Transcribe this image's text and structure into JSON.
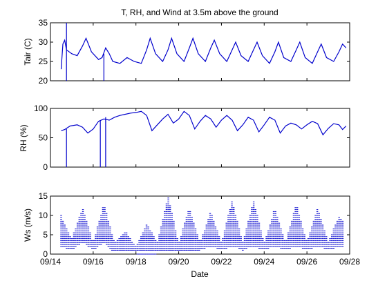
{
  "chart_data": [
    {
      "type": "line",
      "title": "T, RH, and Wind at 3.5m above the ground",
      "ylabel": "Tair (C)",
      "xlabel": "",
      "xlim": [
        "09/14",
        "09/28"
      ],
      "ylim": [
        20,
        35
      ],
      "yticks": [
        20,
        25,
        30,
        35
      ],
      "grid": false,
      "color": "#0000cc",
      "series": [
        {
          "x": [
            "09/14 12:00",
            "09/14 14:00",
            "09/14 16:00",
            "09/14 18:00",
            "09/15 00:00",
            "09/15 06:00",
            "09/15 12:00",
            "09/15 16:00",
            "09/15 22:00",
            "09/16 06:00",
            "09/16 10:00",
            "09/16 14:00",
            "09/16 18:00",
            "09/16 22:00",
            "09/17 06:00",
            "09/17 14:00",
            "09/17 22:00",
            "09/18 06:00",
            "09/18 12:00",
            "09/18 16:00",
            "09/18 22:00",
            "09/19 06:00",
            "09/19 12:00",
            "09/19 16:00",
            "09/19 22:00",
            "09/20 06:00",
            "09/20 12:00",
            "09/20 16:00",
            "09/20 22:00",
            "09/21 06:00",
            "09/21 12:00",
            "09/21 16:00",
            "09/21 22:00",
            "09/22 06:00",
            "09/22 12:00",
            "09/22 16:00",
            "09/22 22:00",
            "09/23 06:00",
            "09/23 12:00",
            "09/23 16:00",
            "09/23 22:00",
            "09/24 06:00",
            "09/24 12:00",
            "09/24 16:00",
            "09/24 22:00",
            "09/25 06:00",
            "09/25 12:00",
            "09/25 16:00",
            "09/25 22:00",
            "09/26 06:00",
            "09/26 12:00",
            "09/26 16:00",
            "09/26 22:00",
            "09/27 06:00",
            "09/27 12:00",
            "09/27 16:00",
            "09/27 20:00"
          ],
          "y": [
            23.0,
            29.5,
            30.5,
            28.0,
            27.0,
            26.5,
            29.0,
            31.0,
            27.5,
            25.5,
            26.0,
            28.5,
            27.0,
            25.0,
            24.5,
            26.0,
            25.0,
            24.5,
            28.0,
            31.0,
            27.0,
            25.0,
            28.0,
            31.0,
            27.0,
            25.0,
            28.5,
            31.0,
            27.0,
            25.0,
            28.5,
            30.5,
            27.0,
            25.0,
            28.0,
            30.0,
            26.5,
            25.0,
            28.0,
            30.0,
            26.5,
            24.5,
            27.5,
            30.0,
            26.0,
            25.0,
            28.0,
            30.0,
            26.0,
            24.5,
            27.5,
            29.5,
            26.0,
            25.0,
            27.5,
            29.5,
            28.5
          ]
        }
      ],
      "spikes": [
        {
          "x": "09/14 18:00",
          "from": 20,
          "to": 35
        },
        {
          "x": "09/16 12:00",
          "from": 20,
          "to": 27
        }
      ]
    },
    {
      "type": "line",
      "title": "",
      "ylabel": "RH (%)",
      "xlabel": "",
      "xlim": [
        "09/14",
        "09/28"
      ],
      "ylim": [
        0,
        100
      ],
      "yticks": [
        0,
        50,
        100
      ],
      "grid": false,
      "color": "#0000cc",
      "series": [
        {
          "x": [
            "09/14 12:00",
            "09/14 16:00",
            "09/14 22:00",
            "09/15 06:00",
            "09/15 12:00",
            "09/15 18:00",
            "09/16 00:00",
            "09/16 06:00",
            "09/16 12:00",
            "09/16 18:00",
            "09/17 00:00",
            "09/17 06:00",
            "09/17 12:00",
            "09/17 18:00",
            "09/18 00:00",
            "09/18 06:00",
            "09/18 12:00",
            "09/18 18:00",
            "09/19 00:00",
            "09/19 06:00",
            "09/19 12:00",
            "09/19 18:00",
            "09/20 00:00",
            "09/20 06:00",
            "09/20 12:00",
            "09/20 18:00",
            "09/21 00:00",
            "09/21 06:00",
            "09/21 12:00",
            "09/21 18:00",
            "09/22 00:00",
            "09/22 06:00",
            "09/22 12:00",
            "09/22 18:00",
            "09/23 00:00",
            "09/23 06:00",
            "09/23 12:00",
            "09/23 18:00",
            "09/24 00:00",
            "09/24 06:00",
            "09/24 12:00",
            "09/24 18:00",
            "09/25 00:00",
            "09/25 06:00",
            "09/25 12:00",
            "09/25 18:00",
            "09/26 00:00",
            "09/26 06:00",
            "09/26 12:00",
            "09/26 18:00",
            "09/27 00:00",
            "09/27 06:00",
            "09/27 12:00",
            "09/27 16:00",
            "09/27 20:00"
          ],
          "y": [
            62,
            64,
            70,
            72,
            68,
            58,
            65,
            78,
            82,
            80,
            85,
            88,
            90,
            92,
            93,
            95,
            88,
            62,
            72,
            82,
            90,
            75,
            82,
            95,
            88,
            65,
            78,
            88,
            82,
            68,
            80,
            88,
            80,
            62,
            72,
            85,
            80,
            60,
            72,
            85,
            80,
            58,
            70,
            75,
            72,
            65,
            72,
            78,
            74,
            55,
            66,
            74,
            72,
            64,
            70
          ]
        }
      ],
      "spikes": [
        {
          "x": "09/14 18:00",
          "from": 0,
          "to": 65
        },
        {
          "x": "09/16 08:00",
          "from": 0,
          "to": 80
        },
        {
          "x": "09/16 14:00",
          "from": 0,
          "to": 85
        }
      ]
    },
    {
      "type": "scatter",
      "title": "",
      "ylabel": "Ws (m/s)",
      "xlabel": "Date",
      "xlim": [
        "09/14",
        "09/28"
      ],
      "ylim": [
        0,
        15
      ],
      "yticks": [
        0,
        5,
        10,
        15
      ],
      "xticks": [
        "09/14",
        "09/16",
        "09/18",
        "09/20",
        "09/22",
        "09/24",
        "09/26",
        "09/28"
      ],
      "grid": false,
      "color": "#0000cc",
      "levels": [
        0,
        1,
        1.5,
        2,
        2.5,
        3,
        3.5,
        4,
        4.5,
        5,
        5.5,
        6,
        6.5,
        7,
        7.5,
        8,
        8.5,
        9,
        9.5,
        10,
        10.5,
        11,
        11.5,
        12,
        12.5,
        13,
        13.5,
        14,
        14.5,
        15
      ],
      "envelope": {
        "x": [
          "09/14 12:00",
          "09/15 00:00",
          "09/15 12:00",
          "09/16 00:00",
          "09/16 12:00",
          "09/17 00:00",
          "09/17 12:00",
          "09/18 00:00",
          "09/18 12:00",
          "09/19 00:00",
          "09/19 12:00",
          "09/20 00:00",
          "09/20 12:00",
          "09/21 00:00",
          "09/21 12:00",
          "09/22 00:00",
          "09/22 12:00",
          "09/23 00:00",
          "09/23 12:00",
          "09/24 00:00",
          "09/24 12:00",
          "09/25 00:00",
          "09/25 12:00",
          "09/26 00:00",
          "09/26 12:00",
          "09/27 00:00",
          "09/27 12:00",
          "09/27 18:00"
        ],
        "min": [
          2,
          1,
          3,
          1,
          3,
          0,
          1,
          0,
          0,
          0,
          1,
          0,
          1,
          1,
          2,
          1,
          2,
          1,
          2,
          1,
          2,
          1,
          2,
          1,
          2,
          1,
          2,
          2
        ],
        "max": [
          10,
          4,
          12,
          3,
          13,
          3,
          6,
          2,
          8,
          3,
          15,
          3,
          12,
          3,
          11,
          3,
          14,
          3,
          14,
          3,
          12,
          3,
          13,
          3,
          12,
          3,
          10,
          8
        ]
      }
    }
  ]
}
